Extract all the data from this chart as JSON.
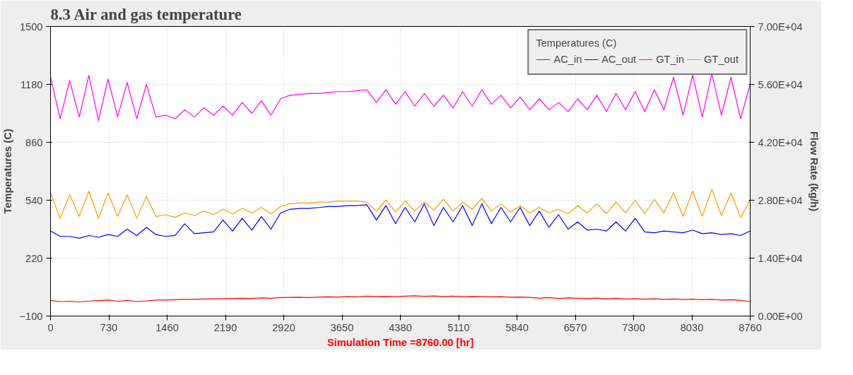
{
  "chart_data": {
    "type": "line",
    "title": "8.3 Air and gas temperature",
    "xlabel": "Simulation Time =8760.00 [hr]",
    "ylabel": "Temperatures (C)",
    "y2label": "Flow Rate (kg/h)",
    "legend_title": "Temperatures (C)",
    "x": [
      0,
      120,
      240,
      360,
      480,
      600,
      720,
      840,
      960,
      1080,
      1200,
      1320,
      1440,
      1560,
      1680,
      1800,
      1920,
      2040,
      2160,
      2280,
      2400,
      2520,
      2640,
      2760,
      2880,
      3000,
      3120,
      3240,
      3360,
      3480,
      3600,
      3720,
      3840,
      3960,
      4080,
      4200,
      4320,
      4440,
      4560,
      4680,
      4800,
      4920,
      5040,
      5160,
      5280,
      5400,
      5520,
      5640,
      5760,
      5880,
      6000,
      6120,
      6240,
      6360,
      6480,
      6600,
      6720,
      6840,
      6960,
      7080,
      7200,
      7320,
      7440,
      7560,
      7680,
      7800,
      7920,
      8040,
      8160,
      8280,
      8400,
      8520,
      8640,
      8760
    ],
    "series": [
      {
        "name": "AC_in",
        "color": "#ff0000",
        "values": [
          -15,
          -20,
          -18,
          -22,
          -17,
          -15,
          -12,
          -18,
          -14,
          -20,
          -16,
          -12,
          -12,
          -10,
          -8,
          -8,
          -6,
          -5,
          -4,
          -3,
          -2,
          -3,
          0,
          -2,
          2,
          3,
          4,
          2,
          5,
          6,
          5,
          8,
          6,
          10,
          8,
          9,
          7,
          10,
          12,
          9,
          11,
          8,
          10,
          7,
          9,
          8,
          6,
          7,
          4,
          5,
          3,
          -2,
          2,
          -3,
          0,
          -2,
          -4,
          -1,
          -5,
          -2,
          -6,
          -4,
          -7,
          -5,
          -8,
          -6,
          -9,
          -7,
          -10,
          -8,
          -12,
          -10,
          -14,
          -20
        ]
      },
      {
        "name": "AC_out",
        "color": "#0000ff",
        "values": [
          370,
          340,
          340,
          330,
          345,
          335,
          350,
          340,
          380,
          345,
          390,
          350,
          340,
          345,
          410,
          355,
          360,
          365,
          430,
          370,
          440,
          375,
          450,
          380,
          470,
          490,
          495,
          495,
          500,
          505,
          505,
          510,
          510,
          515,
          430,
          510,
          410,
          500,
          420,
          520,
          400,
          500,
          420,
          510,
          400,
          520,
          410,
          500,
          420,
          500,
          400,
          480,
          390,
          460,
          380,
          420,
          375,
          380,
          370,
          420,
          370,
          440,
          365,
          360,
          370,
          365,
          360,
          375,
          355,
          360,
          350,
          355,
          345,
          370
        ]
      },
      {
        "name": "GT_in",
        "color": "#ff00ff",
        "values": [
          1220,
          990,
          1200,
          1000,
          1230,
          980,
          1210,
          1000,
          1190,
          990,
          1180,
          1000,
          1010,
          990,
          1040,
          1000,
          1050,
          1010,
          1060,
          1010,
          1080,
          1020,
          1090,
          1010,
          1100,
          1120,
          1125,
          1130,
          1130,
          1135,
          1140,
          1140,
          1145,
          1150,
          1080,
          1150,
          1070,
          1140,
          1060,
          1130,
          1060,
          1120,
          1050,
          1140,
          1060,
          1150,
          1070,
          1120,
          1050,
          1110,
          1040,
          1100,
          1040,
          1080,
          1030,
          1100,
          1040,
          1120,
          1030,
          1130,
          1040,
          1140,
          1030,
          1150,
          1040,
          1220,
          1010,
          1230,
          1000,
          1240,
          1010,
          1220,
          990,
          1180
        ]
      },
      {
        "name": "GT_out",
        "color": "#ff9900",
        "values": [
          580,
          440,
          570,
          450,
          590,
          440,
          580,
          450,
          570,
          440,
          560,
          450,
          460,
          445,
          470,
          455,
          480,
          460,
          490,
          465,
          495,
          470,
          500,
          465,
          505,
          520,
          525,
          525,
          530,
          530,
          535,
          535,
          535,
          530,
          480,
          540,
          475,
          535,
          480,
          530,
          485,
          545,
          480,
          530,
          490,
          550,
          480,
          520,
          475,
          510,
          470,
          500,
          470,
          490,
          465,
          510,
          470,
          520,
          465,
          530,
          470,
          540,
          465,
          545,
          470,
          580,
          450,
          590,
          450,
          600,
          455,
          580,
          445,
          540
        ]
      }
    ],
    "xlim": [
      0,
      8760
    ],
    "xticks": [
      0,
      730,
      1460,
      2190,
      2920,
      3650,
      4380,
      5110,
      5840,
      6570,
      7300,
      8030,
      8760
    ],
    "ylim": [
      -100,
      1500
    ],
    "yticks": [
      -100,
      220,
      540,
      860,
      1180,
      1500
    ],
    "y2lim": [
      0,
      70000
    ],
    "y2ticks": [
      {
        "value": 0,
        "label": "0.00E+00"
      },
      {
        "value": 14000,
        "label": "1.40E+04"
      },
      {
        "value": 28000,
        "label": "2.80E+04"
      },
      {
        "value": 42000,
        "label": "4.20E+04"
      },
      {
        "value": 56000,
        "label": "5.60E+04"
      },
      {
        "value": 70000,
        "label": "7.00E+04"
      }
    ],
    "grid": true,
    "legend": "top right",
    "line_style": "solid"
  }
}
